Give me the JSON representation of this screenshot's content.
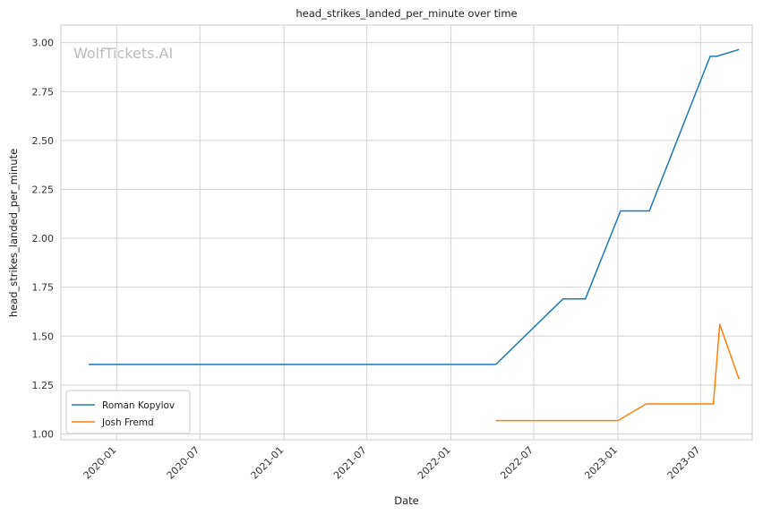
{
  "chart_data": {
    "type": "line",
    "title": "head_strikes_landed_per_minute over time",
    "xlabel": "Date",
    "ylabel": "head_strikes_landed_per_minute",
    "watermark": "WolfTickets.AI",
    "x_range": [
      "2019-09-01",
      "2023-10-22"
    ],
    "ylim": [
      0.97,
      3.09
    ],
    "grid": true,
    "legend_position": "lower-left",
    "x_ticks": [
      "2020-01",
      "2020-07",
      "2021-01",
      "2021-07",
      "2022-01",
      "2022-07",
      "2023-01",
      "2023-07"
    ],
    "y_ticks": [
      "1.00",
      "1.25",
      "1.50",
      "1.75",
      "2.00",
      "2.25",
      "2.50",
      "2.75",
      "3.00"
    ],
    "series": [
      {
        "name": "Roman Kopylov",
        "color": "#1f77b4",
        "points": [
          {
            "x": "2019-11-01",
            "y": 1.355
          },
          {
            "x": "2022-04-09",
            "y": 1.355
          },
          {
            "x": "2022-09-03",
            "y": 1.69
          },
          {
            "x": "2022-10-22",
            "y": 1.69
          },
          {
            "x": "2023-01-07",
            "y": 2.14
          },
          {
            "x": "2023-03-11",
            "y": 2.14
          },
          {
            "x": "2023-07-22",
            "y": 2.93
          },
          {
            "x": "2023-08-05",
            "y": 2.93
          },
          {
            "x": "2023-09-23",
            "y": 2.965
          }
        ]
      },
      {
        "name": "Josh Fremd",
        "color": "#ff7f0e",
        "points": [
          {
            "x": "2022-04-09",
            "y": 1.068
          },
          {
            "x": "2023-01-01",
            "y": 1.068
          },
          {
            "x": "2023-03-04",
            "y": 1.153
          },
          {
            "x": "2023-07-29",
            "y": 1.153
          },
          {
            "x": "2023-08-12",
            "y": 1.56
          },
          {
            "x": "2023-09-23",
            "y": 1.28
          }
        ]
      }
    ]
  }
}
